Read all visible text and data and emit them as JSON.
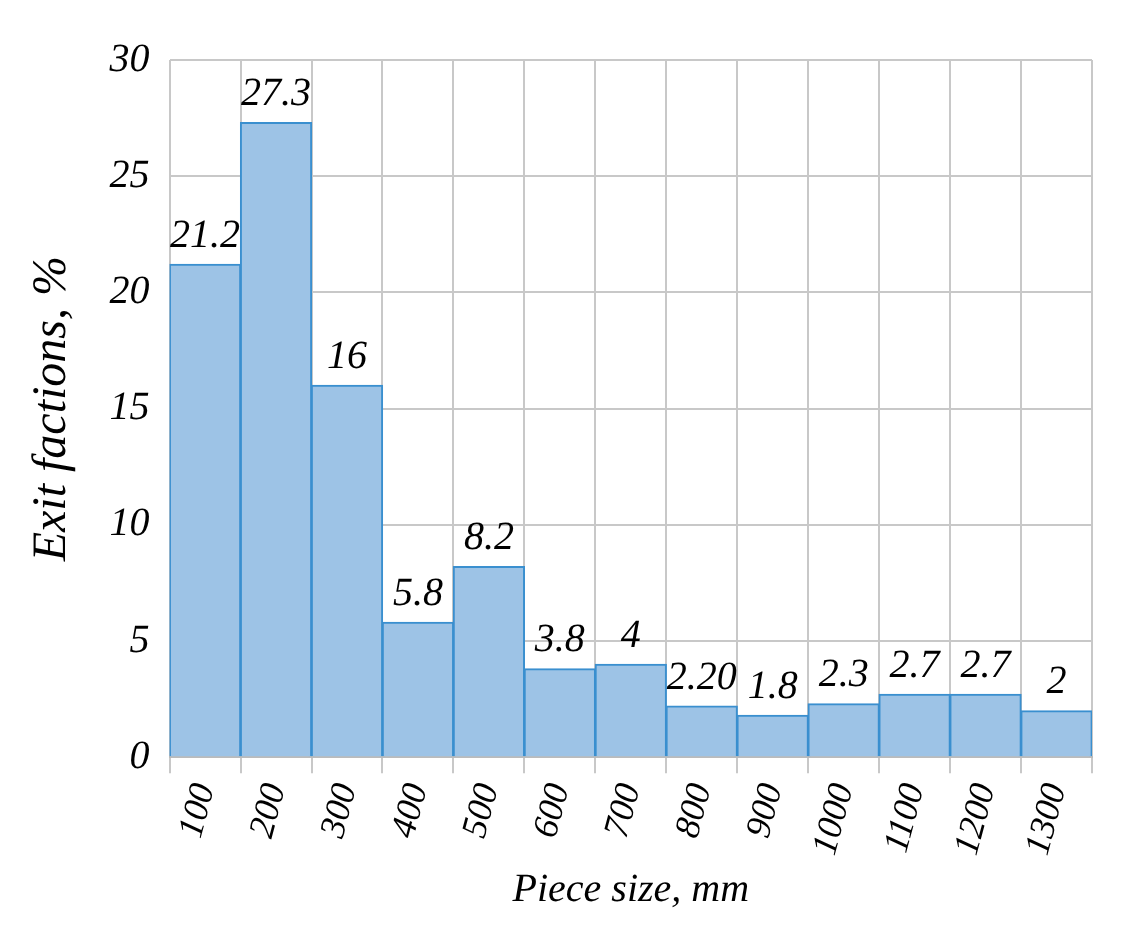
{
  "chart_data": {
    "type": "bar",
    "xlabel": "Piece size, mm",
    "ylabel": "Exit factions, %",
    "categories": [
      "100",
      "200",
      "300",
      "400",
      "500",
      "600",
      "700",
      "800",
      "900",
      "1000",
      "1100",
      "1200",
      "1300"
    ],
    "values": [
      21.2,
      27.3,
      16,
      5.8,
      8.2,
      3.8,
      4,
      2.2,
      1.8,
      2.3,
      2.7,
      2.7,
      2
    ],
    "value_labels": [
      "21.2",
      "27.3",
      "16",
      "5.8",
      "8.2",
      "3.8",
      "4",
      "2.20",
      "1.8",
      "2.3",
      "2.7",
      "2.7",
      "2"
    ],
    "color": "#9dc3e6",
    "ylim": [
      0,
      30
    ],
    "yticks": [
      0,
      5,
      10,
      15,
      20,
      25,
      30
    ],
    "grid": true
  }
}
